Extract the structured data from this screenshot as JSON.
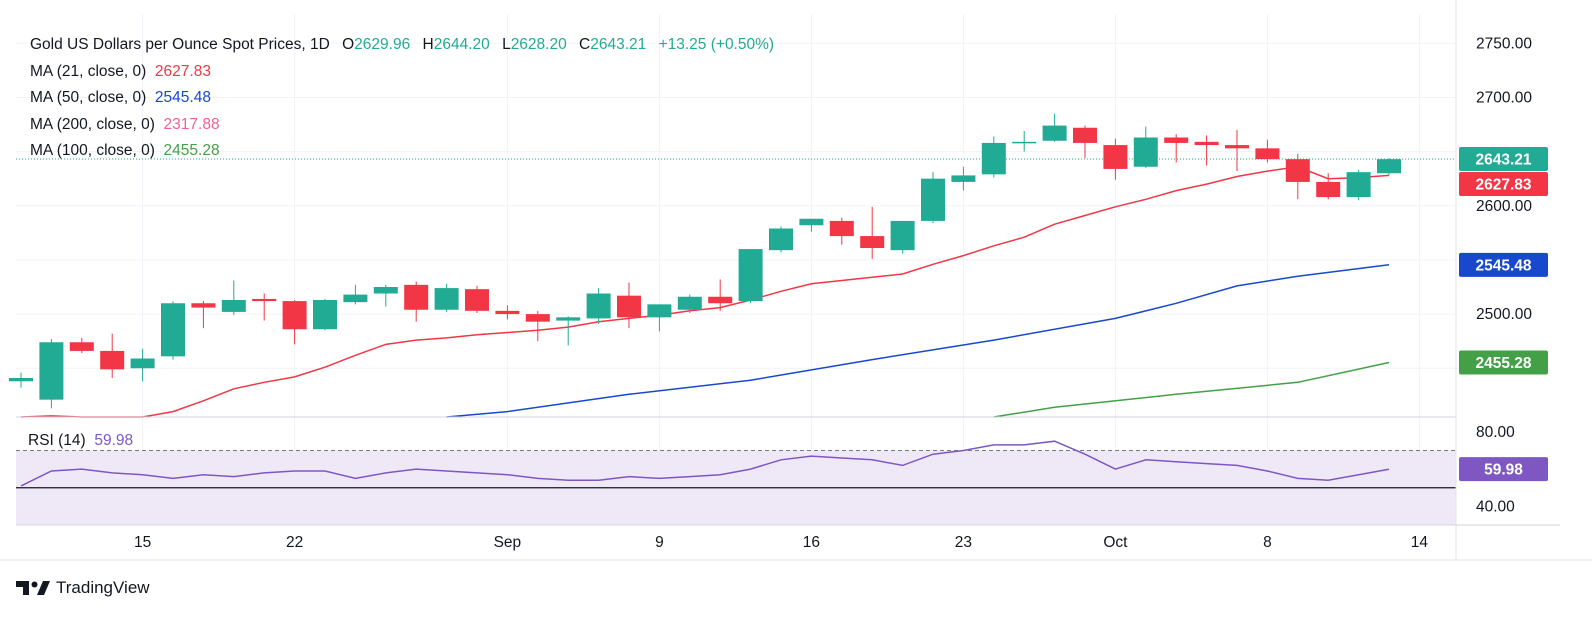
{
  "chart_data": {
    "type": "candlestick",
    "title": "Gold US Dollars per Ounce Spot Prices, 1D",
    "ohlc_summary": {
      "o_label": "O",
      "o": "2629.96",
      "h_label": "H",
      "h": "2644.20",
      "l_label": "L",
      "l": "2628.20",
      "c_label": "C",
      "c": "2643.21",
      "change": "+13.25 (+0.50%)"
    },
    "indicators": [
      {
        "name": "MA (21, close, 0)",
        "value": "2627.83",
        "color": "#f23645"
      },
      {
        "name": "MA (50, close, 0)",
        "value": "2545.48",
        "color": "#1848cc"
      },
      {
        "name": "MA (200, close, 0)",
        "value": "2317.88",
        "color": "#f06292"
      },
      {
        "name": "MA (100, close, 0)",
        "value": "2455.28",
        "color": "#43a047"
      }
    ],
    "price_axis": {
      "ticks": [
        "2750.00",
        "2700.00",
        "2600.00",
        "2500.00"
      ],
      "tick_values": [
        2750,
        2700,
        2600,
        2500
      ],
      "range": [
        2405,
        2777
      ]
    },
    "price_tags": [
      {
        "text": "2643.21",
        "value": 2643.21,
        "color": "#22ab94"
      },
      {
        "text": "2627.83",
        "value": 2627.83,
        "color": "#f23645"
      },
      {
        "text": "2545.48",
        "value": 2545.48,
        "color": "#1848cc"
      },
      {
        "text": "2455.28",
        "value": 2455.28,
        "color": "#43a047"
      }
    ],
    "last_price": 2643.21,
    "x_ticks": [
      "15",
      "22",
      "Sep",
      "9",
      "16",
      "23",
      "Oct",
      "8",
      "14"
    ],
    "candles": [
      {
        "o": 2438,
        "h": 2446,
        "l": 2432,
        "c": 2441
      },
      {
        "o": 2421,
        "h": 2477,
        "l": 2413,
        "c": 2474
      },
      {
        "o": 2474,
        "h": 2478,
        "l": 2464,
        "c": 2466
      },
      {
        "o": 2466,
        "h": 2482,
        "l": 2441,
        "c": 2449
      },
      {
        "o": 2450,
        "h": 2468,
        "l": 2438,
        "c": 2459
      },
      {
        "o": 2461,
        "h": 2512,
        "l": 2458,
        "c": 2510
      },
      {
        "o": 2510,
        "h": 2512,
        "l": 2487,
        "c": 2506
      },
      {
        "o": 2502,
        "h": 2531,
        "l": 2499,
        "c": 2513
      },
      {
        "o": 2514,
        "h": 2519,
        "l": 2494,
        "c": 2512
      },
      {
        "o": 2512,
        "h": 2513,
        "l": 2472,
        "c": 2486
      },
      {
        "o": 2486,
        "h": 2514,
        "l": 2485,
        "c": 2513
      },
      {
        "o": 2511,
        "h": 2527,
        "l": 2509,
        "c": 2518
      },
      {
        "o": 2519,
        "h": 2527,
        "l": 2507,
        "c": 2525
      },
      {
        "o": 2527,
        "h": 2530,
        "l": 2493,
        "c": 2504
      },
      {
        "o": 2504,
        "h": 2528,
        "l": 2502,
        "c": 2524
      },
      {
        "o": 2523,
        "h": 2526,
        "l": 2501,
        "c": 2503
      },
      {
        "o": 2503,
        "h": 2508,
        "l": 2495,
        "c": 2500
      },
      {
        "o": 2500,
        "h": 2503,
        "l": 2475,
        "c": 2493
      },
      {
        "o": 2494,
        "h": 2498,
        "l": 2471,
        "c": 2497
      },
      {
        "o": 2496,
        "h": 2524,
        "l": 2491,
        "c": 2519
      },
      {
        "o": 2517,
        "h": 2529,
        "l": 2487,
        "c": 2497
      },
      {
        "o": 2497,
        "h": 2509,
        "l": 2484,
        "c": 2509
      },
      {
        "o": 2504,
        "h": 2518,
        "l": 2501,
        "c": 2516
      },
      {
        "o": 2516,
        "h": 2532,
        "l": 2503,
        "c": 2510
      },
      {
        "o": 2512,
        "h": 2560,
        "l": 2510,
        "c": 2560
      },
      {
        "o": 2559,
        "h": 2581,
        "l": 2557,
        "c": 2579
      },
      {
        "o": 2582,
        "h": 2588,
        "l": 2576,
        "c": 2588
      },
      {
        "o": 2586,
        "h": 2589,
        "l": 2564,
        "c": 2572
      },
      {
        "o": 2572,
        "h": 2599,
        "l": 2551,
        "c": 2561
      },
      {
        "o": 2559,
        "h": 2585,
        "l": 2556,
        "c": 2586
      },
      {
        "o": 2586,
        "h": 2631,
        "l": 2584,
        "c": 2625
      },
      {
        "o": 2622,
        "h": 2636,
        "l": 2614,
        "c": 2628
      },
      {
        "o": 2629,
        "h": 2664,
        "l": 2626,
        "c": 2658
      },
      {
        "o": 2659,
        "h": 2669,
        "l": 2650,
        "c": 2659
      },
      {
        "o": 2660,
        "h": 2685,
        "l": 2659,
        "c": 2674
      },
      {
        "o": 2672,
        "h": 2674,
        "l": 2644,
        "c": 2658
      },
      {
        "o": 2656,
        "h": 2662,
        "l": 2624,
        "c": 2634
      },
      {
        "o": 2636,
        "h": 2673,
        "l": 2635,
        "c": 2663
      },
      {
        "o": 2663,
        "h": 2666,
        "l": 2640,
        "c": 2658
      },
      {
        "o": 2659,
        "h": 2665,
        "l": 2637,
        "c": 2656
      },
      {
        "o": 2656,
        "h": 2670,
        "l": 2632,
        "c": 2653
      },
      {
        "o": 2653,
        "h": 2661,
        "l": 2640,
        "c": 2643
      },
      {
        "o": 2643,
        "h": 2648,
        "l": 2606,
        "c": 2622
      },
      {
        "o": 2622,
        "h": 2630,
        "l": 2606,
        "c": 2608
      },
      {
        "o": 2608,
        "h": 2633,
        "l": 2605,
        "c": 2631
      },
      {
        "o": 2630,
        "h": 2644,
        "l": 2628,
        "c": 2643
      }
    ],
    "ma21": [
      [
        0,
        2405
      ],
      [
        1,
        2406
      ],
      [
        2,
        2405
      ],
      [
        3,
        2405
      ],
      [
        4,
        2405
      ],
      [
        5,
        2410
      ],
      [
        6,
        2420
      ],
      [
        7,
        2431
      ],
      [
        8,
        2437
      ],
      [
        9,
        2442
      ],
      [
        10,
        2451
      ],
      [
        11,
        2462
      ],
      [
        12,
        2472
      ],
      [
        13,
        2476
      ],
      [
        14,
        2478
      ],
      [
        15,
        2481
      ],
      [
        16,
        2483
      ],
      [
        17,
        2485
      ],
      [
        18,
        2488
      ],
      [
        19,
        2493
      ],
      [
        20,
        2496
      ],
      [
        21,
        2499
      ],
      [
        22,
        2503
      ],
      [
        23,
        2506
      ],
      [
        24,
        2513
      ],
      [
        25,
        2521
      ],
      [
        26,
        2528
      ],
      [
        27,
        2531
      ],
      [
        28,
        2534
      ],
      [
        29,
        2537
      ],
      [
        30,
        2546
      ],
      [
        31,
        2554
      ],
      [
        32,
        2563
      ],
      [
        33,
        2571
      ],
      [
        34,
        2583
      ],
      [
        35,
        2591
      ],
      [
        36,
        2599
      ],
      [
        37,
        2606
      ],
      [
        38,
        2614
      ],
      [
        39,
        2620
      ],
      [
        40,
        2627
      ],
      [
        41,
        2632
      ],
      [
        42,
        2636
      ],
      [
        43,
        2625
      ],
      [
        44,
        2626
      ],
      [
        45,
        2628
      ]
    ],
    "ma50": [
      [
        14,
        2405
      ],
      [
        16,
        2410
      ],
      [
        20,
        2426
      ],
      [
        24,
        2439
      ],
      [
        28,
        2458
      ],
      [
        32,
        2476
      ],
      [
        36,
        2496
      ],
      [
        38,
        2510
      ],
      [
        40,
        2526
      ],
      [
        42,
        2535
      ],
      [
        45,
        2545.48
      ]
    ],
    "ma100": [
      [
        32,
        2405
      ],
      [
        34,
        2414
      ],
      [
        38,
        2426
      ],
      [
        42,
        2437
      ],
      [
        45,
        2455.28
      ]
    ],
    "rsi": {
      "label": "RSI (14)",
      "value": "59.98",
      "ticks": [
        "80.00",
        "40.00"
      ],
      "tick_values": [
        80,
        40
      ],
      "range": [
        30,
        88
      ],
      "upper": 70,
      "lower": 30,
      "mid": 50,
      "values": [
        51,
        59,
        60,
        58,
        57,
        55,
        57,
        56,
        58,
        59,
        59,
        55,
        58,
        60,
        59,
        58,
        57,
        55,
        54,
        54,
        56,
        55,
        56,
        57,
        60,
        65,
        67,
        66,
        65,
        62,
        68,
        70,
        73,
        73,
        75,
        68,
        60,
        65,
        64,
        63,
        62,
        59,
        55,
        54,
        57,
        59.98
      ]
    }
  },
  "footer": {
    "brand": "TradingView"
  },
  "colors": {
    "up": "#22ab94",
    "down": "#f23645",
    "axis_text": "#131722",
    "rsi_line": "#7e57c2",
    "rsi_fill": "#ede7f6"
  }
}
